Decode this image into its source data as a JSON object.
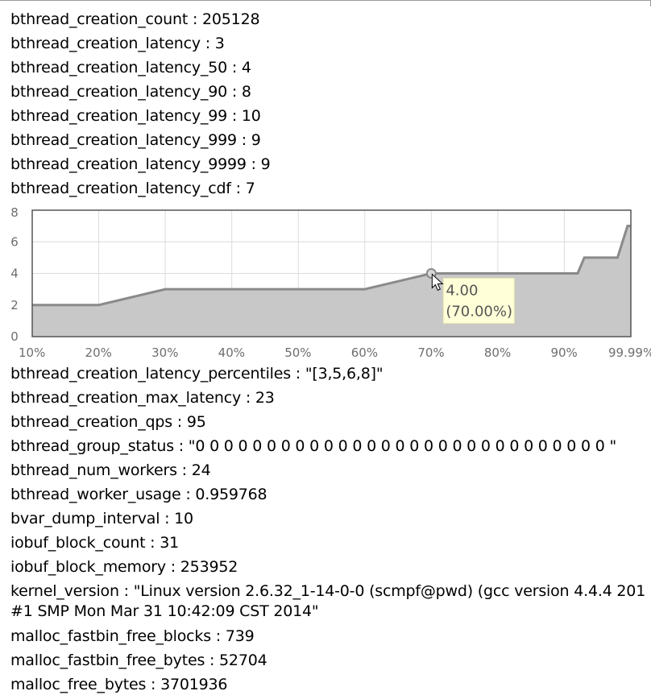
{
  "vars_before": [
    {
      "name": "bthread_creation_count",
      "value": "205128"
    },
    {
      "name": "bthread_creation_latency",
      "value": "3"
    },
    {
      "name": "bthread_creation_latency_50",
      "value": "4"
    },
    {
      "name": "bthread_creation_latency_90",
      "value": "8"
    },
    {
      "name": "bthread_creation_latency_99",
      "value": "10"
    },
    {
      "name": "bthread_creation_latency_999",
      "value": "9"
    },
    {
      "name": "bthread_creation_latency_9999",
      "value": "9"
    },
    {
      "name": "bthread_creation_latency_cdf",
      "value": "7"
    }
  ],
  "vars_after": [
    {
      "name": "bthread_creation_latency_percentiles",
      "value": "\"[3,5,6,8]\""
    },
    {
      "name": "bthread_creation_max_latency",
      "value": "23"
    },
    {
      "name": "bthread_creation_qps",
      "value": "95"
    },
    {
      "name": "bthread_group_status",
      "value": "\"0 0 0 0 0 0 0 0 0 0 0 0 0 0 0 0 0 0 0 0 0 0 0 0 0 0 0 0 0 \""
    },
    {
      "name": "bthread_num_workers",
      "value": "24"
    },
    {
      "name": "bthread_worker_usage",
      "value": "0.959768"
    },
    {
      "name": "bvar_dump_interval",
      "value": "10"
    },
    {
      "name": "iobuf_block_count",
      "value": "31"
    },
    {
      "name": "iobuf_block_memory",
      "value": "253952"
    },
    {
      "name": "kernel_version",
      "value": "\"Linux version 2.6.32_1-14-0-0 (scmpf@pwd) (gcc version 4.4.4 201",
      "value_line2": "#1 SMP Mon Mar 31 10:42:09 CST 2014\""
    },
    {
      "name": "malloc_fastbin_free_blocks",
      "value": "739"
    },
    {
      "name": "malloc_fastbin_free_bytes",
      "value": "52704"
    },
    {
      "name": "malloc_free_bytes",
      "value": "3701936"
    }
  ],
  "separator": " : ",
  "chart_data": {
    "type": "area",
    "x_labels": [
      "10%",
      "20%",
      "30%",
      "40%",
      "50%",
      "60%",
      "70%",
      "80%",
      "90%",
      "99.99%"
    ],
    "y_ticks": [
      "0",
      "2",
      "4",
      "6",
      "8"
    ],
    "ylim": [
      0,
      8
    ],
    "grid": true,
    "series": [
      {
        "points": [
          [
            0,
            2
          ],
          [
            1,
            2
          ],
          [
            2,
            3
          ],
          [
            3,
            3
          ],
          [
            4,
            3
          ],
          [
            5,
            3
          ],
          [
            6,
            4
          ],
          [
            7,
            4
          ],
          [
            8.2,
            4
          ],
          [
            8.3,
            5
          ],
          [
            8.8,
            5
          ],
          [
            8.95,
            7
          ],
          [
            9,
            7
          ]
        ]
      }
    ],
    "fill_color": "#c8c8c8",
    "line_color": "#8a8a8a",
    "tooltip": {
      "value": "4.00",
      "percent": "(70.00%)",
      "x_index": 6,
      "y": 4
    }
  }
}
